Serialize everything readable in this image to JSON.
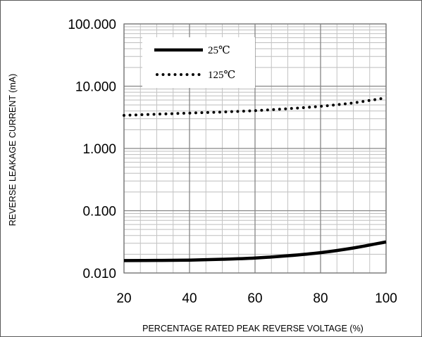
{
  "chart_data": {
    "type": "line",
    "title": "",
    "xlabel": "PERCENTAGE RATED PEAK REVERSE VOLTAGE (%)",
    "ylabel": "REVERSE LEAKAGE CURRENT (mA)",
    "xlim": [
      20,
      100
    ],
    "ylim": [
      0.01,
      100
    ],
    "yscale": "log",
    "grid": true,
    "legend_position": "top-left",
    "x_ticks": [
      20,
      40,
      60,
      80,
      100
    ],
    "x_tick_labels": [
      "20",
      "40",
      "60",
      "80",
      "100"
    ],
    "y_ticks": [
      0.01,
      0.1,
      1,
      10,
      100
    ],
    "y_tick_labels": [
      "0.010",
      "0.100",
      "1.000",
      "10.000",
      "100.000"
    ],
    "series": [
      {
        "name": "25℃",
        "style": "solid",
        "color": "#000000",
        "x": [
          20,
          30,
          40,
          50,
          60,
          70,
          80,
          90,
          100
        ],
        "y": [
          0.0158,
          0.0159,
          0.0161,
          0.0166,
          0.0174,
          0.0189,
          0.0212,
          0.0252,
          0.0315
        ]
      },
      {
        "name": "125℃",
        "style": "dotted",
        "color": "#000000",
        "x": [
          20,
          30,
          40,
          50,
          60,
          70,
          80,
          90,
          100
        ],
        "y": [
          3.4,
          3.55,
          3.7,
          3.85,
          4.05,
          4.35,
          4.75,
          5.4,
          6.5
        ]
      }
    ]
  }
}
